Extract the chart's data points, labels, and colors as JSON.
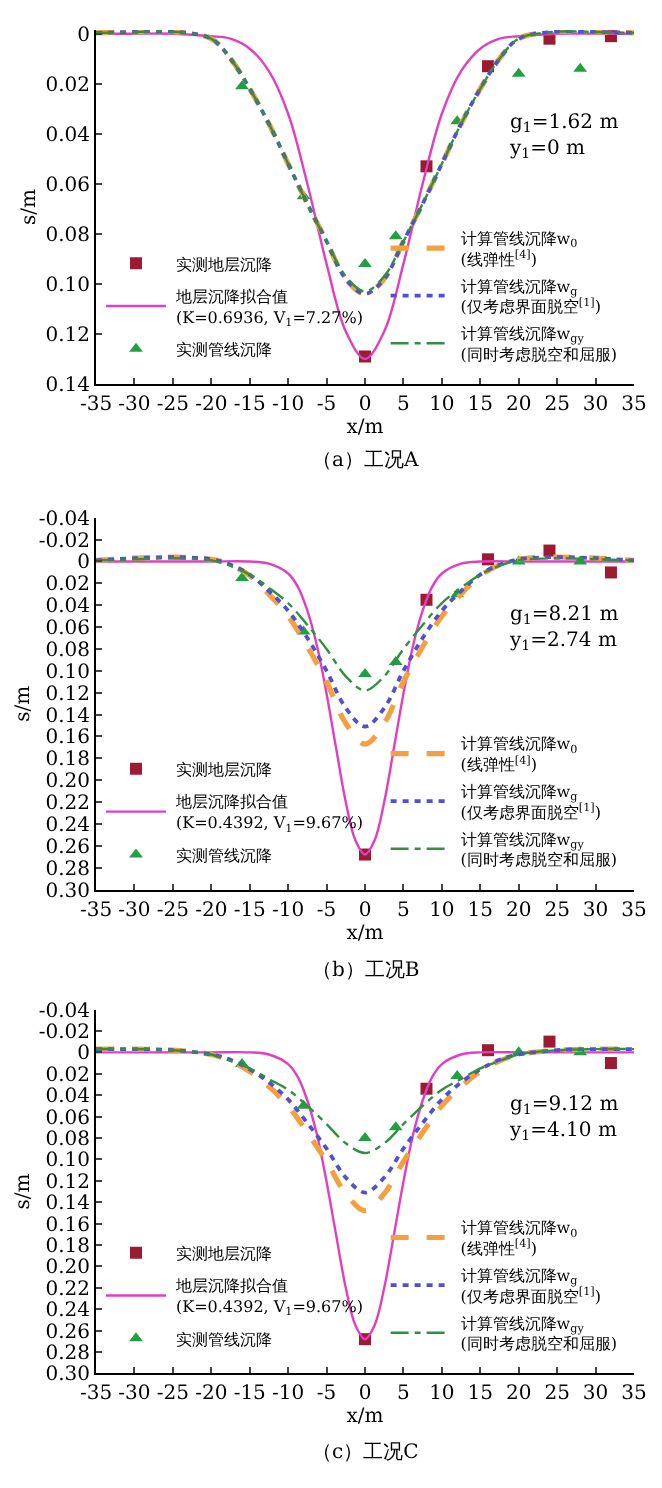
{
  "chart_data": [
    {
      "type": "line",
      "xlabel": "x/m",
      "ylabel": "s/m",
      "xlim": [
        -35,
        35
      ],
      "ylim": [
        0.14,
        -0.0015
      ],
      "grid": false,
      "legend": "bottom",
      "xticks": [
        -35,
        -30,
        -25,
        -20,
        -15,
        -10,
        -5,
        0,
        5,
        10,
        15,
        20,
        25,
        30,
        35
      ],
      "yticks": [
        0,
        0.02,
        0.04,
        0.06,
        0.08,
        {
          "value": 0.1,
          "label": "0.10"
        },
        0.12,
        0.14
      ],
      "annotations": [
        "g$_{1}$=1.62 m\ny$_{1}$=0 m",
        "（a）工况A"
      ],
      "series": [
        {
          "name": "实测地层沉降",
          "type": "scatter",
          "marker": "square",
          "color": "#9b1b30",
          "x": [
            0,
            8,
            16,
            24,
            32
          ],
          "values": [
            0.129,
            0.053,
            0.013,
            0.002,
            0.001
          ]
        },
        {
          "name": "地层沉降拟合值\n(K=0.6936, V$_{1}$=7.27%)",
          "line_style": "solid",
          "color": "#e040c0",
          "x": [
            -35,
            -30,
            -25,
            -20,
            -17.5,
            -15,
            -12.5,
            -10,
            -7.5,
            -5,
            -2.5,
            0,
            2.5,
            5,
            7.5,
            10,
            12.5,
            15,
            17.5,
            20,
            25,
            30,
            35
          ],
          "values": [
            0,
            0,
            0,
            0.001,
            0.002,
            0.006,
            0.015,
            0.032,
            0.06,
            0.092,
            0.119,
            0.13,
            0.119,
            0.092,
            0.06,
            0.032,
            0.015,
            0.006,
            0.002,
            0.001,
            0,
            0,
            0
          ]
        },
        {
          "name": "实测管线沉降",
          "type": "scatter",
          "marker": "triangle",
          "color": "#20a040",
          "x": [
            -16,
            -8,
            0,
            4,
            12,
            20,
            28
          ],
          "values": [
            0.021,
            0.065,
            0.092,
            0.081,
            0.035,
            0.016,
            0.014
          ]
        },
        {
          "name": "计算管线沉降w$_{0}$\n(线弹性$^{[4]}$)",
          "line_style": "dashed",
          "color": "#f5a040",
          "x": [
            -35,
            -30,
            -25,
            -20,
            -17.5,
            -15,
            -12.5,
            -10,
            -7.5,
            -5,
            -2.5,
            0,
            2.5,
            5,
            7.5,
            10,
            12.5,
            15,
            17.5,
            20,
            25,
            30,
            35
          ],
          "values": [
            -0.0003,
            -0.0007,
            -0.0008,
            0.002,
            0.01,
            0.022,
            0.036,
            0.052,
            0.068,
            0.083,
            0.098,
            0.104,
            0.098,
            0.083,
            0.068,
            0.052,
            0.036,
            0.022,
            0.01,
            0.002,
            -0.0008,
            -0.0007,
            -0.0003
          ]
        },
        {
          "name": "计算管线沉降w$_{g}$\n(仅考虑界面脱空$^{[1]}$)",
          "line_style": "dotted",
          "color": "#5050d0",
          "x": [
            -35,
            -30,
            -25,
            -20,
            -17.5,
            -15,
            -12.5,
            -10,
            -7.5,
            -5,
            -2.5,
            0,
            2.5,
            5,
            7.5,
            10,
            12.5,
            15,
            17.5,
            20,
            25,
            30,
            35
          ],
          "values": [
            -0.0003,
            -0.0007,
            -0.0008,
            0.002,
            0.01,
            0.022,
            0.036,
            0.052,
            0.068,
            0.083,
            0.098,
            0.104,
            0.098,
            0.083,
            0.068,
            0.052,
            0.036,
            0.022,
            0.01,
            0.002,
            -0.0008,
            -0.0007,
            -0.0003
          ]
        },
        {
          "name": "计算管线沉降w$_{gy}$\n(同时考虑脱空和屈服)",
          "line_style": "dashdot",
          "color": "#309040",
          "x": [
            -35,
            -30,
            -25,
            -20,
            -17.5,
            -15,
            -12.5,
            -10,
            -7.5,
            -5,
            -2.5,
            0,
            2.5,
            5,
            7.5,
            10,
            12.5,
            15,
            17.5,
            20,
            25,
            30,
            35
          ],
          "values": [
            -0.0003,
            -0.0007,
            -0.0008,
            0.002,
            0.01,
            0.022,
            0.036,
            0.052,
            0.068,
            0.083,
            0.097,
            0.103,
            0.097,
            0.083,
            0.068,
            0.052,
            0.036,
            0.022,
            0.01,
            0.002,
            -0.0008,
            -0.0007,
            -0.0003
          ]
        }
      ]
    },
    {
      "type": "line",
      "xlabel": "x/m",
      "ylabel": "s/m",
      "xlim": [
        -35,
        35
      ],
      "ylim": [
        0.3,
        -0.04
      ],
      "grid": false,
      "legend": "bottom",
      "xticks": [
        -35,
        -30,
        -25,
        -20,
        -15,
        -10,
        -5,
        0,
        5,
        10,
        15,
        20,
        25,
        30,
        35
      ],
      "yticks": [
        -0.04,
        -0.02,
        0,
        0.02,
        0.04,
        0.06,
        0.08,
        {
          "value": 0.1,
          "label": "0.10"
        },
        0.12,
        0.14,
        0.16,
        0.18,
        {
          "value": 0.2,
          "label": "0.20"
        },
        0.22,
        0.24,
        0.26,
        0.28,
        {
          "value": 0.3,
          "label": "0.30"
        }
      ],
      "annotations": [
        "g$_{1}$=8.21 m\ny$_{1}$=2.74 m",
        "（b）工况B"
      ],
      "series": [
        {
          "name": "实测地层沉降",
          "type": "scatter",
          "marker": "square",
          "color": "#9b1b30",
          "x": [
            0,
            8,
            16,
            24,
            32
          ],
          "values": [
            0.268,
            0.035,
            -0.002,
            -0.01,
            0.01
          ]
        },
        {
          "name": "地层沉降拟合值\n(K=0.4392, V$_{1}$=9.67%)",
          "line_style": "solid",
          "color": "#e040c0",
          "x": [
            -35,
            -30,
            -25,
            -20,
            -15,
            -12.5,
            -10,
            -8.75,
            -7.5,
            -6.25,
            -5,
            -3.75,
            -2.5,
            -1.25,
            0,
            1.25,
            2.5,
            3.75,
            5,
            6.25,
            7.5,
            8.75,
            10,
            12.5,
            15,
            20,
            25,
            30,
            35
          ],
          "values": [
            0,
            0,
            0,
            0,
            0,
            0.002,
            0.011,
            0.023,
            0.045,
            0.077,
            0.121,
            0.171,
            0.22,
            0.255,
            0.268,
            0.255,
            0.22,
            0.171,
            0.121,
            0.077,
            0.045,
            0.023,
            0.011,
            0.002,
            0,
            0,
            0,
            0,
            0
          ]
        },
        {
          "name": "实测管线沉降",
          "type": "scatter",
          "marker": "triangle",
          "color": "#20a040",
          "x": [
            -16,
            -8,
            0,
            4,
            12,
            20,
            28
          ],
          "values": [
            0.015,
            0.064,
            0.103,
            0.092,
            0.03,
            0.0,
            0.0
          ]
        },
        {
          "name": "计算管线沉降w$_{0}$\n(线弹性$^{[4]}$)",
          "line_style": "dashed",
          "color": "#f5a040",
          "x": [
            -35,
            -30,
            -25,
            -20,
            -17.5,
            -15,
            -12.5,
            -10,
            -7.5,
            -5,
            -2.5,
            0,
            2.5,
            5,
            7.5,
            10,
            12.5,
            15,
            17.5,
            20,
            25,
            30,
            35
          ],
          "values": [
            -0.001,
            -0.003,
            -0.004,
            -0.002,
            0.003,
            0.013,
            0.03,
            0.05,
            0.078,
            0.11,
            0.148,
            0.167,
            0.148,
            0.11,
            0.078,
            0.05,
            0.03,
            0.013,
            0.003,
            -0.002,
            -0.004,
            -0.003,
            -0.001
          ]
        },
        {
          "name": "计算管线沉降w$_{g}$\n(仅考虑界面脱空$^{[1]}$)",
          "line_style": "dotted",
          "color": "#5050d0",
          "x": [
            -35,
            -30,
            -25,
            -20,
            -17.5,
            -15,
            -12.5,
            -10,
            -7.5,
            -5,
            -2.5,
            0,
            2.5,
            5,
            7.5,
            10,
            12.5,
            15,
            17.5,
            20,
            25,
            30,
            35
          ],
          "values": [
            -0.001,
            -0.003,
            -0.004,
            -0.002,
            0.003,
            0.012,
            0.027,
            0.045,
            0.07,
            0.1,
            0.134,
            0.151,
            0.134,
            0.1,
            0.07,
            0.045,
            0.027,
            0.012,
            0.003,
            -0.002,
            -0.004,
            -0.003,
            -0.001
          ]
        },
        {
          "name": "计算管线沉降w$_{gy}$\n(同时考虑脱空和屈服)",
          "line_style": "dashdot",
          "color": "#309040",
          "x": [
            -35,
            -30,
            -25,
            -20,
            -17.5,
            -15,
            -12.5,
            -10,
            -7.5,
            -5,
            -2.5,
            0,
            2.5,
            5,
            7.5,
            10,
            12.5,
            15,
            17.5,
            20,
            25,
            30,
            35
          ],
          "values": [
            -0.001,
            -0.002,
            -0.003,
            -0.001,
            0.004,
            0.012,
            0.024,
            0.038,
            0.058,
            0.08,
            0.105,
            0.118,
            0.105,
            0.08,
            0.058,
            0.038,
            0.024,
            0.012,
            0.004,
            -0.001,
            -0.003,
            -0.002,
            -0.001
          ]
        }
      ]
    },
    {
      "type": "line",
      "xlabel": "x/m",
      "ylabel": "s/m",
      "xlim": [
        -35,
        35
      ],
      "ylim": [
        0.3,
        -0.04
      ],
      "grid": false,
      "legend": "bottom",
      "xticks": [
        -35,
        -30,
        -25,
        -20,
        -15,
        -10,
        -5,
        0,
        5,
        10,
        15,
        20,
        25,
        30,
        35
      ],
      "yticks": [
        -0.04,
        -0.02,
        0,
        0.02,
        0.04,
        0.06,
        0.08,
        {
          "value": 0.1,
          "label": "0.10"
        },
        0.12,
        0.14,
        0.16,
        0.18,
        {
          "value": 0.2,
          "label": "0.20"
        },
        0.22,
        0.24,
        0.26,
        0.28,
        {
          "value": 0.3,
          "label": "0.30"
        }
      ],
      "annotations": [
        "g$_{1}$=9.12 m\ny$_{1}$=4.10 m",
        "（c）工况C"
      ],
      "series": [
        {
          "name": "实测地层沉降",
          "type": "scatter",
          "marker": "square",
          "color": "#9b1b30",
          "x": [
            0,
            8,
            16,
            24,
            32
          ],
          "values": [
            0.268,
            0.034,
            -0.002,
            -0.01,
            0.01
          ]
        },
        {
          "name": "地层沉降拟合值\n(K=0.4392, V$_{1}$=9.67%)",
          "line_style": "solid",
          "color": "#e040c0",
          "x": [
            -35,
            -30,
            -25,
            -20,
            -15,
            -12.5,
            -10,
            -8.75,
            -7.5,
            -6.25,
            -5,
            -3.75,
            -2.5,
            -1.25,
            0,
            1.25,
            2.5,
            3.75,
            5,
            6.25,
            7.5,
            8.75,
            10,
            12.5,
            15,
            20,
            25,
            30,
            35
          ],
          "values": [
            0,
            0,
            0,
            0,
            0,
            0.002,
            0.011,
            0.023,
            0.045,
            0.077,
            0.121,
            0.171,
            0.22,
            0.255,
            0.268,
            0.255,
            0.22,
            0.171,
            0.121,
            0.077,
            0.045,
            0.023,
            0.011,
            0.002,
            0,
            0,
            0,
            0,
            0
          ]
        },
        {
          "name": "实测管线沉降",
          "type": "scatter",
          "marker": "triangle",
          "color": "#20a040",
          "x": [
            -16,
            -8,
            0,
            4,
            12,
            20,
            28
          ],
          "values": [
            0.011,
            0.05,
            0.08,
            0.07,
            0.022,
            0.0,
            0.0
          ]
        },
        {
          "name": "计算管线沉降w$_{0}$\n(线弹性$^{[4]}$)",
          "line_style": "dashed",
          "color": "#f5a040",
          "x": [
            -35,
            -30,
            -25,
            -20,
            -17.5,
            -15,
            -12.5,
            -10,
            -7.5,
            -5,
            -2.5,
            0,
            2.5,
            5,
            7.5,
            10,
            12.5,
            15,
            17.5,
            20,
            25,
            30,
            35
          ],
          "values": [
            -0.003,
            -0.003,
            -0.002,
            0.002,
            0.008,
            0.018,
            0.032,
            0.05,
            0.075,
            0.102,
            0.132,
            0.148,
            0.132,
            0.102,
            0.075,
            0.05,
            0.032,
            0.018,
            0.008,
            0.002,
            -0.002,
            -0.003,
            -0.003
          ]
        },
        {
          "name": "计算管线沉降w$_{g}$\n(仅考虑界面脱空$^{[1]}$)",
          "line_style": "dotted",
          "color": "#5050d0",
          "x": [
            -35,
            -30,
            -25,
            -20,
            -17.5,
            -15,
            -12.5,
            -10,
            -7.5,
            -5,
            -2.5,
            0,
            2.5,
            5,
            7.5,
            10,
            12.5,
            15,
            17.5,
            20,
            25,
            30,
            35
          ],
          "values": [
            -0.003,
            -0.003,
            -0.002,
            0.002,
            0.007,
            0.016,
            0.028,
            0.044,
            0.066,
            0.09,
            0.117,
            0.131,
            0.117,
            0.09,
            0.066,
            0.044,
            0.028,
            0.016,
            0.007,
            0.002,
            -0.002,
            -0.003,
            -0.003
          ]
        },
        {
          "name": "计算管线沉降w$_{gy}$\n(同时考虑脱空和屈服)",
          "line_style": "dashdot",
          "color": "#309040",
          "x": [
            -35,
            -30,
            -25,
            -20,
            -17.5,
            -15,
            -12.5,
            -10,
            -7.5,
            -5,
            -2.5,
            0,
            2.5,
            5,
            7.5,
            10,
            12.5,
            15,
            17.5,
            20,
            25,
            30,
            35
          ],
          "values": [
            -0.003,
            -0.003,
            -0.002,
            0.002,
            0.008,
            0.015,
            0.025,
            0.035,
            0.05,
            0.067,
            0.085,
            0.094,
            0.085,
            0.067,
            0.05,
            0.035,
            0.025,
            0.015,
            0.008,
            0.002,
            -0.002,
            -0.003,
            -0.003
          ]
        }
      ]
    }
  ]
}
